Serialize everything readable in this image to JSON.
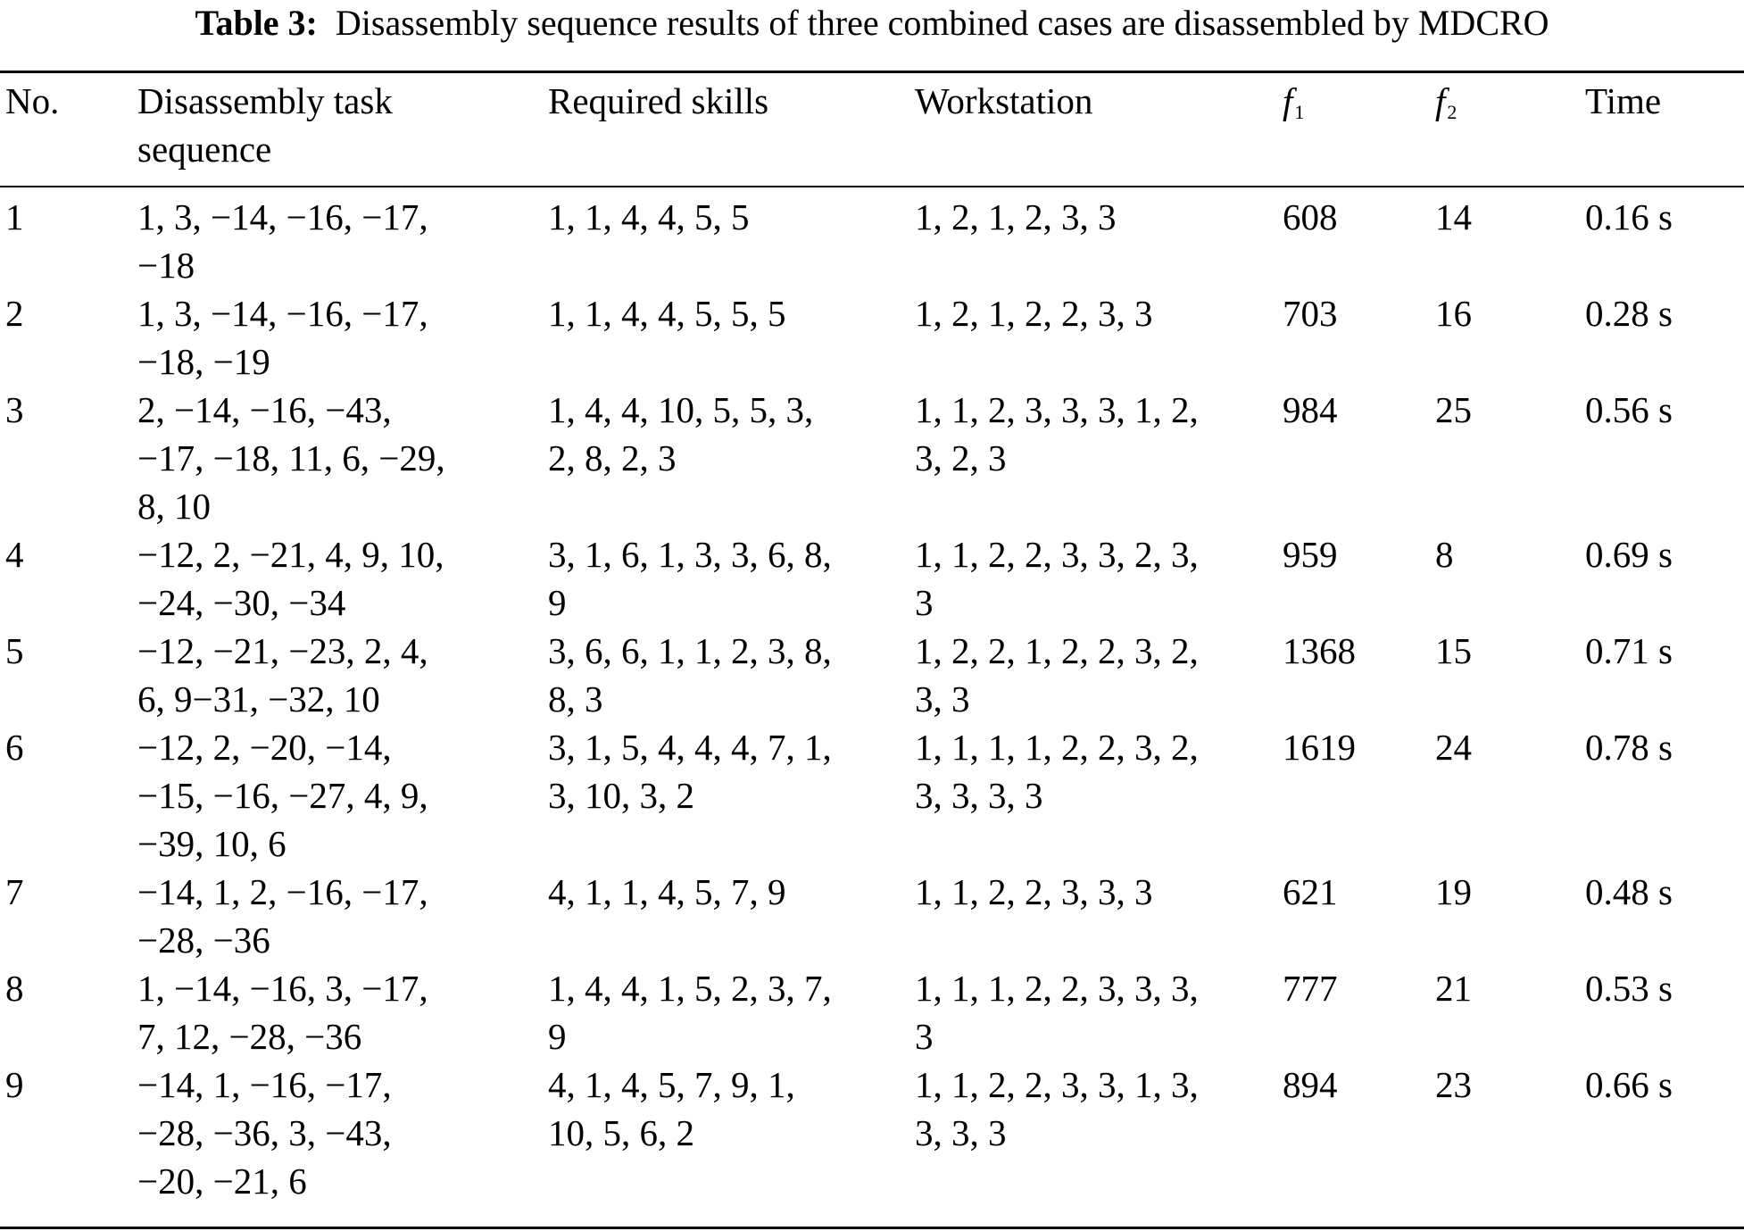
{
  "caption": {
    "label": "Table 3:",
    "text": "Disassembly sequence results of three combined cases are disassembled by MDCRO"
  },
  "headers": {
    "no": "No.",
    "sequence_line1": "Disassembly task",
    "sequence_line2": "sequence",
    "skills": "Required skills",
    "workstation": "Workstation",
    "f1_symbol": "f",
    "f1_subscript": "1",
    "f2_symbol": "f",
    "f2_subscript": "2",
    "time": "Time"
  },
  "rows": [
    {
      "no": "1",
      "sequence": [
        "1, 3, −14, −16, −17,",
        "−18"
      ],
      "skills": [
        "1, 1, 4, 4, 5, 5"
      ],
      "workstation": [
        "1, 2, 1, 2, 3, 3"
      ],
      "f1": "608",
      "f2": "14",
      "time": "0.16 s"
    },
    {
      "no": "2",
      "sequence": [
        "1, 3, −14, −16, −17,",
        "−18, −19"
      ],
      "skills": [
        "1, 1, 4, 4, 5, 5, 5"
      ],
      "workstation": [
        "1, 2, 1, 2, 2, 3, 3"
      ],
      "f1": "703",
      "f2": "16",
      "time": "0.28 s"
    },
    {
      "no": "3",
      "sequence": [
        "2, −14, −16, −43,",
        "−17, −18, 11, 6, −29,",
        "8, 10"
      ],
      "skills": [
        "1, 4, 4, 10, 5, 5, 3,",
        "2, 8, 2, 3"
      ],
      "workstation": [
        "1, 1, 2, 3, 3, 3, 1, 2,",
        "3, 2, 3"
      ],
      "f1": "984",
      "f2": "25",
      "time": "0.56 s"
    },
    {
      "no": "4",
      "sequence": [
        "−12, 2, −21, 4, 9, 10,",
        "−24, −30, −34"
      ],
      "skills": [
        "3, 1, 6, 1, 3, 3, 6, 8,",
        "9"
      ],
      "workstation": [
        "1, 1, 2, 2, 3, 3, 2, 3,",
        "3"
      ],
      "f1": "959",
      "f2": "8",
      "time": "0.69 s"
    },
    {
      "no": "5",
      "sequence": [
        "−12, −21, −23, 2, 4,",
        "6, 9−31, −32, 10"
      ],
      "skills": [
        "3, 6, 6, 1, 1, 2, 3, 8,",
        "8, 3"
      ],
      "workstation": [
        "1, 2, 2, 1, 2, 2, 3, 2,",
        "3, 3"
      ],
      "f1": "1368",
      "f2": "15",
      "time": "0.71 s"
    },
    {
      "no": "6",
      "sequence": [
        "−12, 2, −20, −14,",
        "−15, −16, −27, 4, 9,",
        "−39, 10, 6"
      ],
      "skills": [
        "3, 1, 5, 4, 4, 4, 7, 1,",
        "3, 10, 3, 2"
      ],
      "workstation": [
        "1, 1, 1, 1, 2, 2, 3, 2,",
        "3, 3, 3, 3"
      ],
      "f1": "1619",
      "f2": "24",
      "time": "0.78 s"
    },
    {
      "no": "7",
      "sequence": [
        "−14, 1, 2, −16, −17,",
        "−28, −36"
      ],
      "skills": [
        "4, 1, 1, 4, 5, 7, 9"
      ],
      "workstation": [
        "1, 1, 2, 2, 3, 3, 3"
      ],
      "f1": "621",
      "f2": "19",
      "time": "0.48 s"
    },
    {
      "no": "8",
      "sequence": [
        "1, −14, −16, 3, −17,",
        "7, 12, −28, −36"
      ],
      "skills": [
        "1, 4, 4, 1, 5, 2, 3, 7,",
        "9"
      ],
      "workstation": [
        "1, 1, 1, 2, 2, 3, 3, 3,",
        "3"
      ],
      "f1": "777",
      "f2": "21",
      "time": "0.53 s"
    },
    {
      "no": "9",
      "sequence": [
        "−14, 1, −16, −17,",
        "−28, −36, 3, −43,",
        "−20, −21, 6"
      ],
      "skills": [
        "4, 1, 4, 5, 7, 9, 1,",
        "10, 5, 6, 2"
      ],
      "workstation": [
        "1, 1, 2, 2, 3, 3, 1, 3,",
        "3, 3, 3"
      ],
      "f1": "894",
      "f2": "23",
      "time": "0.66 s"
    }
  ]
}
